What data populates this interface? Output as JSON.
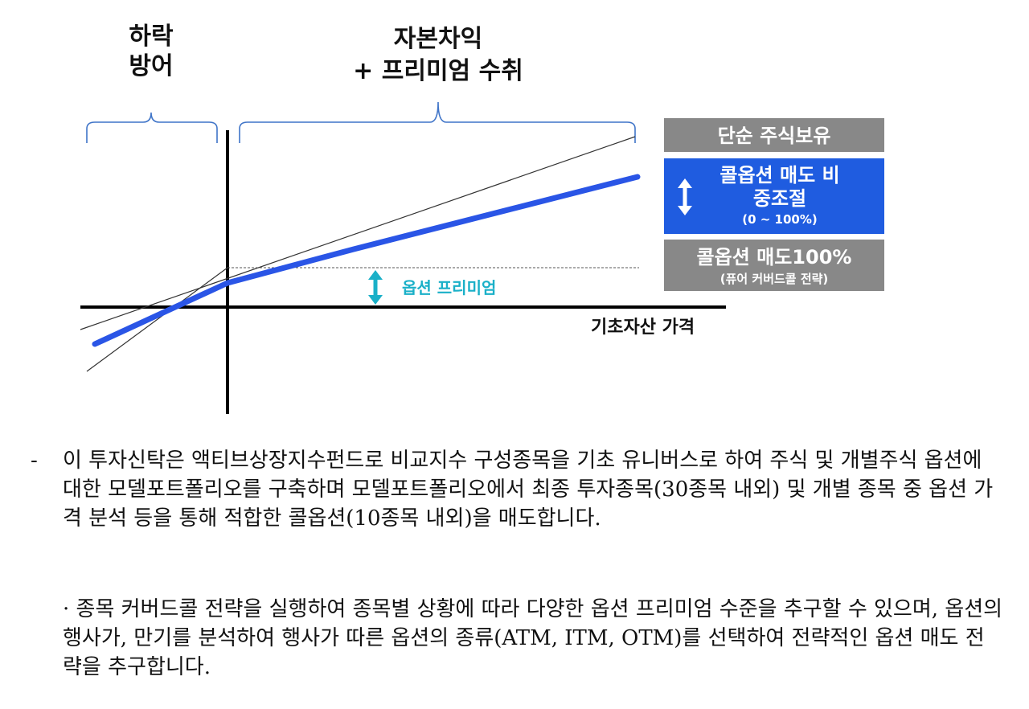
{
  "labels": {
    "downside": [
      "하락",
      "방어"
    ],
    "upside": [
      "자본차익",
      "+ 프리미엄 수취"
    ],
    "option_premium": "옵션 프리미엄",
    "x_axis": "기초자산 가격"
  },
  "legend": {
    "simple_stock": "단순 주식보유",
    "call_ratio": [
      "콜옵션 매도 비",
      "중조절",
      "(0 ~ 100%)"
    ],
    "covered_call": [
      "콜옵션 매도100%",
      "(퓨어 커버드콜 전략)"
    ]
  },
  "colors": {
    "gray_box": "#888888",
    "blue_box": "#1f5ce0",
    "blue_line": "#2a55e6",
    "teal": "#1ab0c8",
    "bracket": "#3f74c8"
  },
  "text": {
    "bullet_dash": "-",
    "para1": "이 투자신탁은 액티브상장지수펀드로 비교지수 구성종목을 기초 유니버스로 하여 주식 및 개별주식 옵션에 대한 모델포트폴리오를 구축하며 모델포트폴리오에서 최종 투자종목(30종목 내외) 및 개별 종목 중 옵션 가격 분석 등을 통해 적합한 콜옵션(10종목 내외)을 매도합니다.",
    "para2": "· 종목 커버드콜 전략을 실행하여 종목별 상황에 따라 다양한 옵션 프리미엄 수준을 추구할 수 있으며, 옵션의 행사가, 만기를 분석하여 행사가 따른 옵션의 종류(ATM, ITM, OTM)를 선택하여 전략적인 옵션 매도 전략을 추구합니다."
  }
}
